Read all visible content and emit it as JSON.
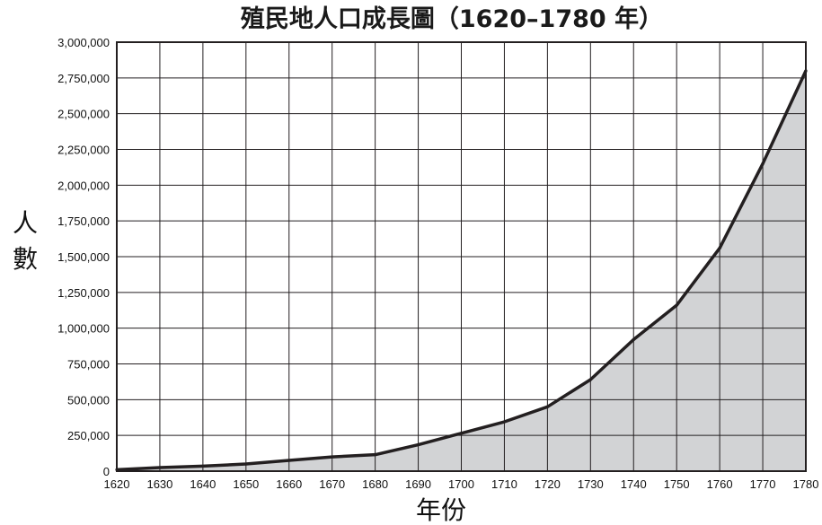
{
  "chart_data": {
    "type": "area",
    "title": "殖民地人口成長圖（1620–1780 年）",
    "xlabel": "年份",
    "ylabel": "人數",
    "x": [
      1620,
      1630,
      1640,
      1650,
      1660,
      1670,
      1680,
      1690,
      1700,
      1710,
      1720,
      1730,
      1740,
      1750,
      1760,
      1770,
      1780
    ],
    "series": [
      {
        "values": [
          10000,
          25000,
          35000,
          50000,
          75000,
          100000,
          115000,
          185000,
          265000,
          345000,
          450000,
          640000,
          920000,
          1160000,
          1560000,
          2150000,
          2800000
        ]
      }
    ],
    "xlim": [
      1620,
      1780
    ],
    "ylim": [
      0,
      3000000
    ],
    "x_ticks": [
      "1620",
      "1630",
      "1640",
      "1650",
      "1660",
      "1670",
      "1680",
      "1690",
      "1700",
      "1710",
      "1720",
      "1730",
      "1740",
      "1750",
      "1760",
      "1770",
      "1780"
    ],
    "y_ticks": [
      "0",
      "250,000",
      "500,000",
      "750,000",
      "1,000,000",
      "1,250,000",
      "1,500,000",
      "1,750,000",
      "2,000,000",
      "2,250,000",
      "2,500,000",
      "2,750,000",
      "3,000,000"
    ],
    "grid": true,
    "colors": {
      "fill": "#d2d3d5",
      "line": "#231f20",
      "grid": "#231f20"
    }
  }
}
